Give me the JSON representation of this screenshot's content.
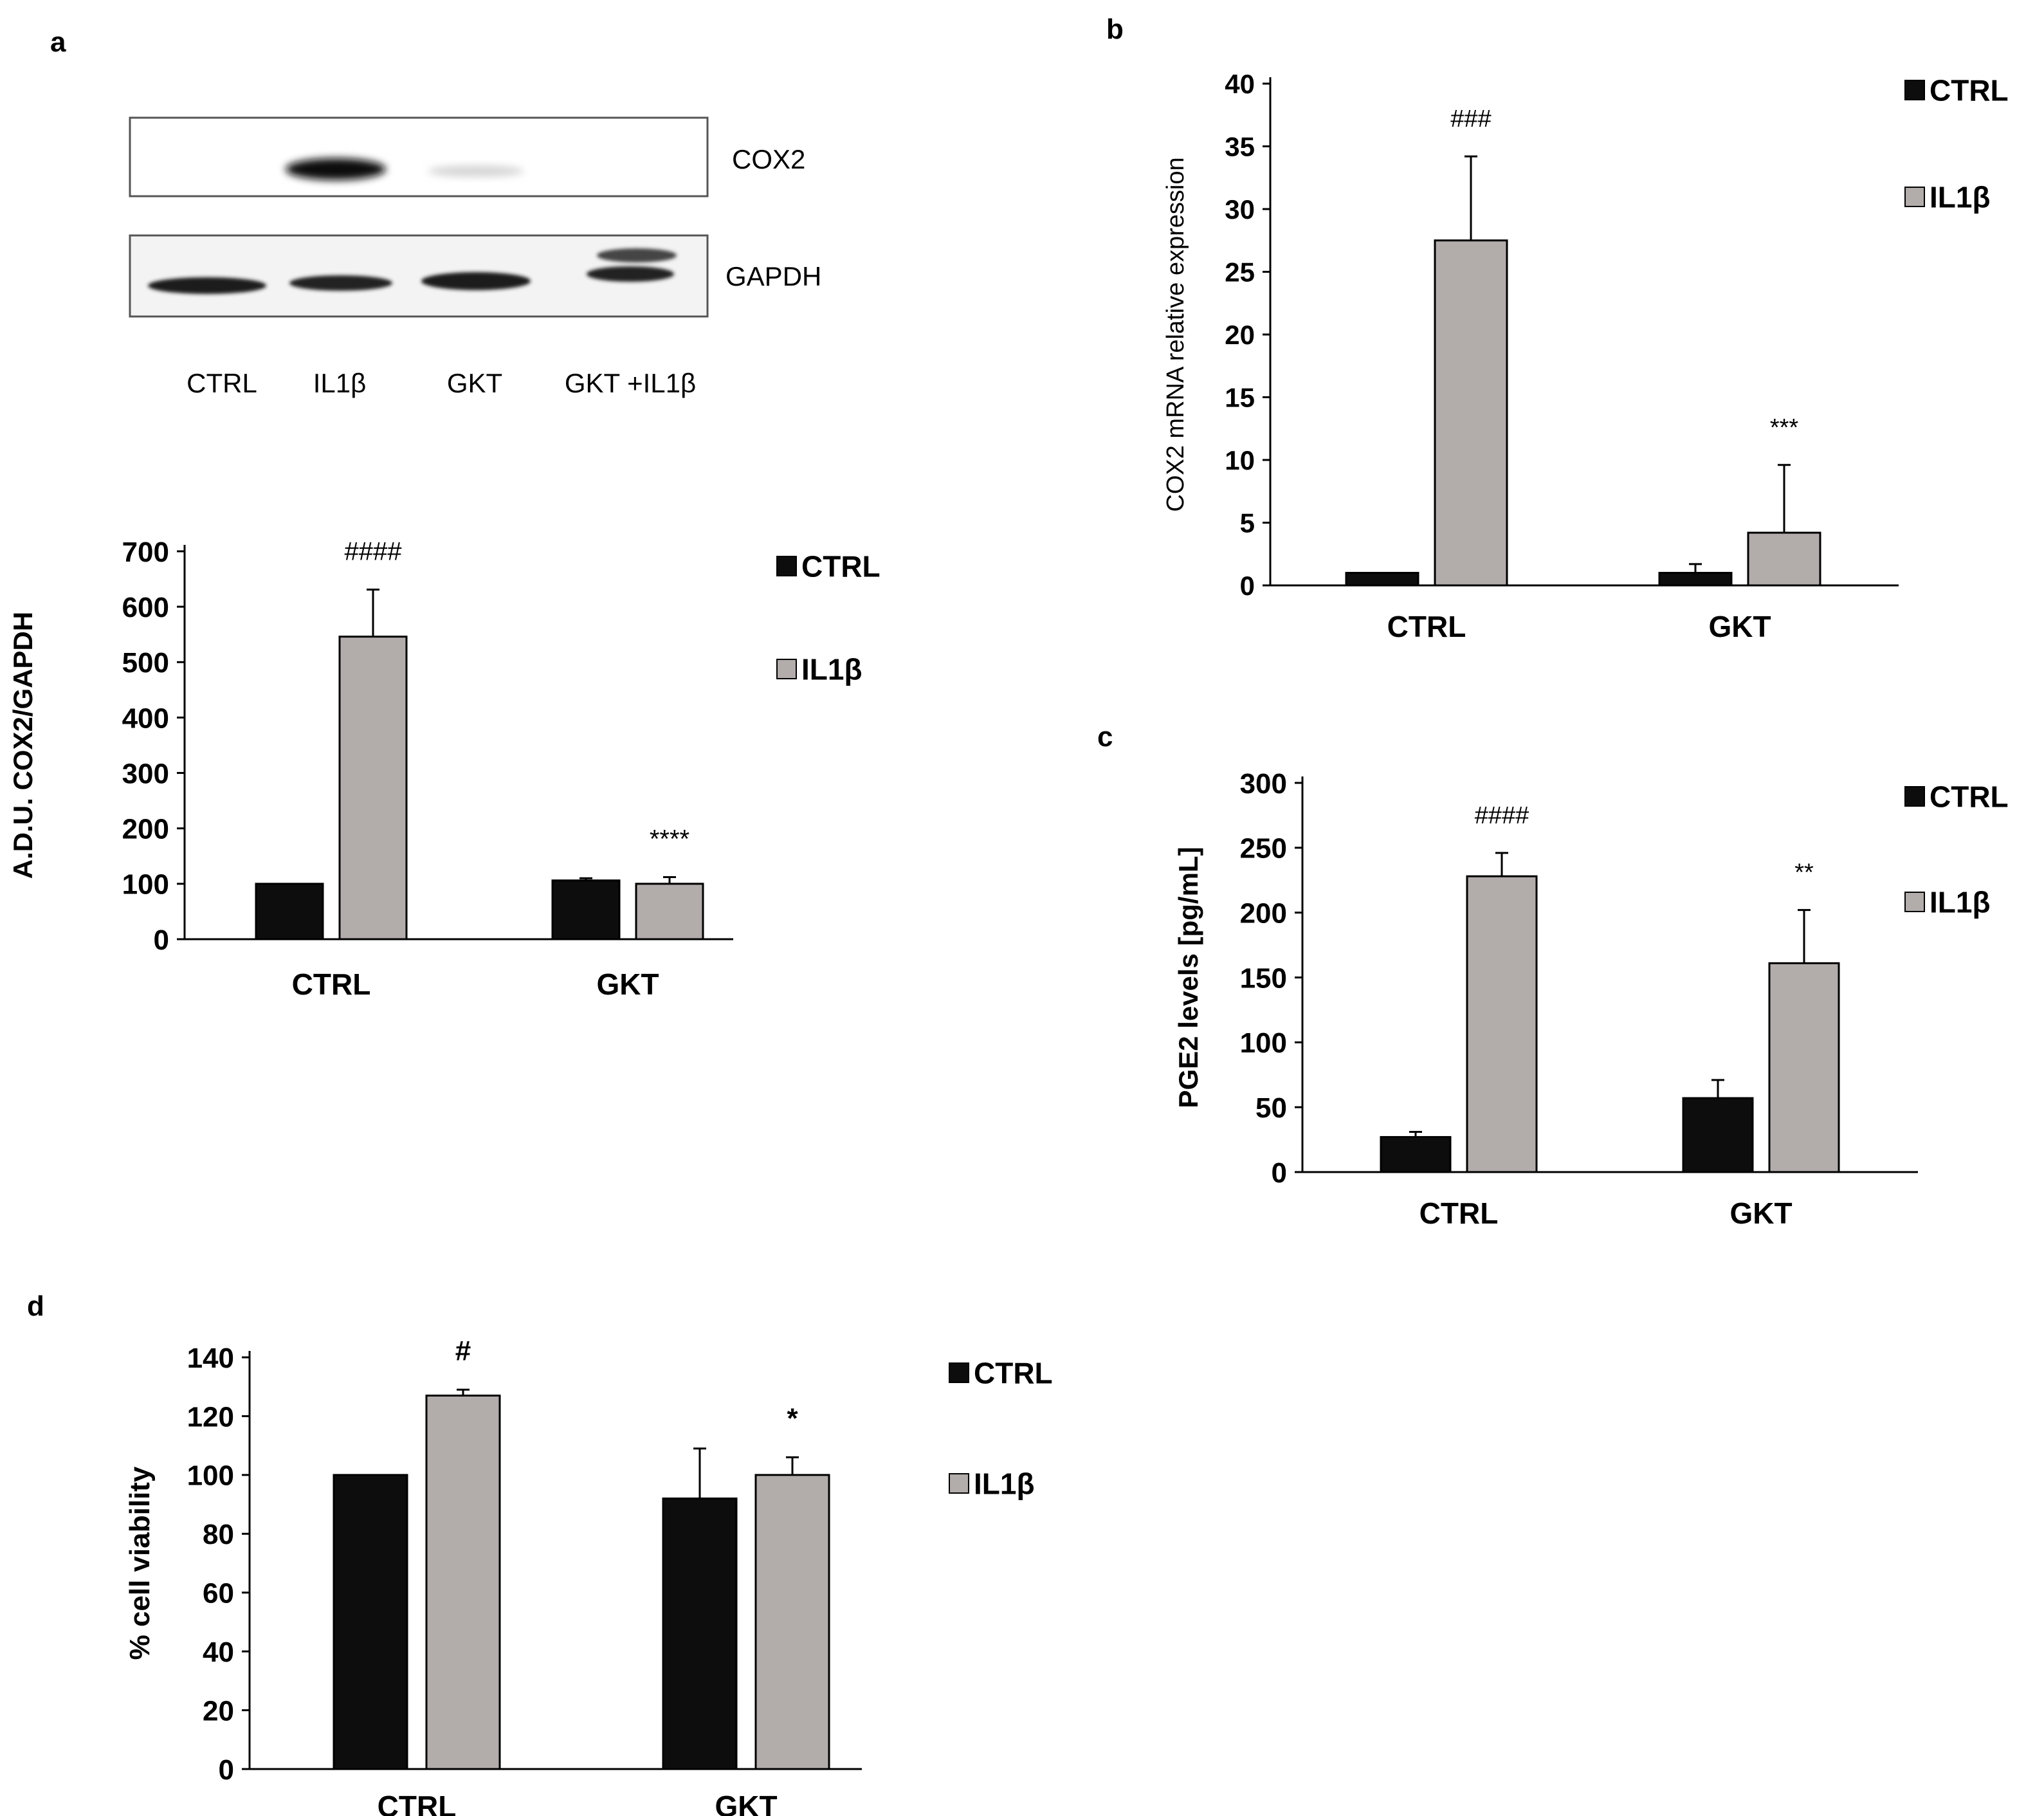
{
  "colors": {
    "ctrl": "#0d0d0d",
    "il1b": "#b2adab",
    "axis": "#000000"
  },
  "blot": {
    "panel_label": "a",
    "band_labels": [
      "COX2",
      "GAPDH"
    ],
    "lane_labels": [
      "CTRL",
      "IL1β",
      "GKT",
      "GKT +IL1β"
    ]
  },
  "chart_data": [
    {
      "id": "a",
      "panel_label": "",
      "type": "bar",
      "title": "",
      "xlabel": "",
      "ylabel": "A.D.U. COX2/GAPDH",
      "ylim": [
        0,
        700
      ],
      "yticks": [
        "0",
        "100",
        "200",
        "300",
        "400",
        "500",
        "600",
        "700"
      ],
      "categories": [
        "CTRL",
        "GKT"
      ],
      "series": [
        {
          "name": "CTRL",
          "values": [
            100,
            106
          ],
          "errors": [
            0,
            4
          ]
        },
        {
          "name": "IL1β",
          "values": [
            546,
            100
          ],
          "errors": [
            85,
            12
          ]
        }
      ],
      "annotations": [
        {
          "category": 0,
          "series": 1,
          "text": "####"
        },
        {
          "category": 1,
          "series": 1,
          "text": "****"
        }
      ],
      "legend": [
        "CTRL",
        "IL1β"
      ],
      "legend_position": "top-right"
    },
    {
      "id": "b",
      "panel_label": "b",
      "type": "bar",
      "title": "",
      "xlabel": "",
      "ylabel": "COX2 mRNA relative expression",
      "ylim": [
        0,
        40
      ],
      "yticks": [
        "0",
        "5",
        "10",
        "15",
        "20",
        "25",
        "30",
        "35",
        "40"
      ],
      "categories": [
        "CTRL",
        "GKT"
      ],
      "series": [
        {
          "name": "CTRL",
          "values": [
            1,
            1
          ],
          "errors": [
            0,
            0.7
          ]
        },
        {
          "name": "IL1β",
          "values": [
            27.5,
            4.2
          ],
          "errors": [
            6.7,
            5.4
          ]
        }
      ],
      "annotations": [
        {
          "category": 0,
          "series": 1,
          "text": "###"
        },
        {
          "category": 1,
          "series": 1,
          "text": "***"
        }
      ],
      "legend": [
        "CTRL",
        "IL1β"
      ],
      "legend_position": "top-right"
    },
    {
      "id": "c",
      "panel_label": "c",
      "type": "bar",
      "title": "",
      "xlabel": "",
      "ylabel": "PGE2 levels [pg/mL]",
      "ylim": [
        0,
        300
      ],
      "yticks": [
        "0",
        "50",
        "100",
        "150",
        "200",
        "250",
        "300"
      ],
      "categories": [
        "CTRL",
        "GKT"
      ],
      "series": [
        {
          "name": "CTRL",
          "values": [
            27,
            57
          ],
          "errors": [
            4,
            14
          ]
        },
        {
          "name": "IL1β",
          "values": [
            228,
            161
          ],
          "errors": [
            18,
            41
          ]
        }
      ],
      "annotations": [
        {
          "category": 0,
          "series": 1,
          "text": "####"
        },
        {
          "category": 1,
          "series": 1,
          "text": "**"
        }
      ],
      "legend": [
        "CTRL",
        "IL1β"
      ],
      "legend_position": "top-right"
    },
    {
      "id": "d",
      "panel_label": "d",
      "type": "bar",
      "title": "",
      "xlabel": "",
      "ylabel": "% cell viability",
      "ylim": [
        0,
        140
      ],
      "yticks": [
        "0",
        "20",
        "40",
        "60",
        "80",
        "100",
        "120",
        "140"
      ],
      "categories": [
        "CTRL",
        "GKT"
      ],
      "series": [
        {
          "name": "CTRL",
          "values": [
            100,
            92
          ],
          "errors": [
            0,
            17
          ]
        },
        {
          "name": "IL1β",
          "values": [
            127,
            100
          ],
          "errors": [
            2,
            6
          ]
        }
      ],
      "annotations": [
        {
          "category": 0,
          "series": 1,
          "text": "#"
        },
        {
          "category": 1,
          "series": 1,
          "text": "*"
        }
      ],
      "legend": [
        "CTRL",
        "IL1β"
      ],
      "legend_position": "right"
    }
  ]
}
